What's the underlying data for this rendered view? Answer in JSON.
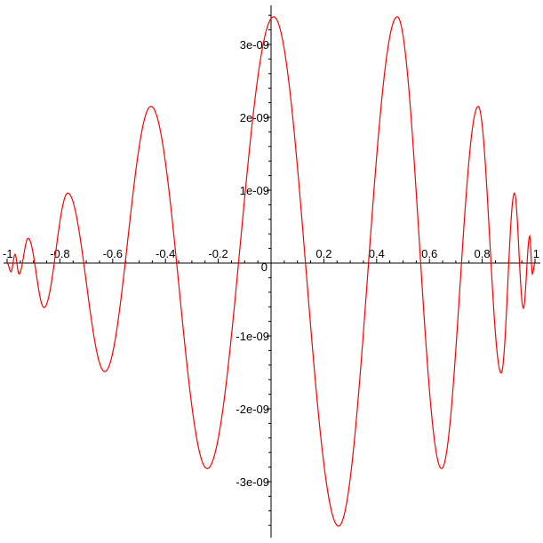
{
  "chart_data": {
    "type": "line",
    "title": "",
    "xlabel": "",
    "ylabel": "",
    "xlim": [
      -1,
      1
    ],
    "ylim": [
      -3.75e-09,
      3.55e-09
    ],
    "grid": false,
    "legend": "none",
    "line_color": "#ff0000",
    "axis_color": "#000000",
    "x_ticks": [
      {
        "value": -1,
        "label": "-1"
      },
      {
        "value": -0.8,
        "label": "-0.8"
      },
      {
        "value": -0.6,
        "label": "-0.6"
      },
      {
        "value": -0.4,
        "label": "-0.4"
      },
      {
        "value": -0.2,
        "label": "-0.2"
      },
      {
        "value": 0.2,
        "label": "0.2"
      },
      {
        "value": 0.4,
        "label": "0.4"
      },
      {
        "value": 0.6,
        "label": "0.6"
      },
      {
        "value": 0.8,
        "label": "0.8"
      },
      {
        "value": 1,
        "label": "1"
      }
    ],
    "y_ticks": [
      {
        "value": 3e-09,
        "label": "3e-09"
      },
      {
        "value": 2e-09,
        "label": "2e-09"
      },
      {
        "value": 1e-09,
        "label": "1e-09"
      },
      {
        "value": -1e-09,
        "label": "-1e-09"
      },
      {
        "value": -2e-09,
        "label": "-2e-09"
      },
      {
        "value": -3e-09,
        "label": "-3e-09"
      }
    ],
    "origin_label": "0",
    "series": [
      {
        "x": [
          -1,
          -0.985,
          -0.97,
          -0.955,
          -0.92,
          -0.86,
          -0.77,
          -0.63,
          -0.455,
          -0.242,
          0.01,
          0.256,
          0.478,
          0.646,
          0.785,
          0.872,
          0.922,
          0.956,
          0.98,
          0.99,
          1
        ],
        "y": [
          0,
          -1.2e-10,
          1.2e-10,
          -1.5e-10,
          3.4e-10,
          -6.1e-10,
          9.6e-10,
          -1.49e-09,
          2.15e-09,
          -2.82e-09,
          3.38e-09,
          -3.61e-09,
          3.38e-09,
          -2.82e-09,
          2.15e-09,
          -1.51e-09,
          9.6e-10,
          -6.2e-10,
          3.7e-10,
          -1.5e-10,
          0
        ]
      }
    ]
  }
}
